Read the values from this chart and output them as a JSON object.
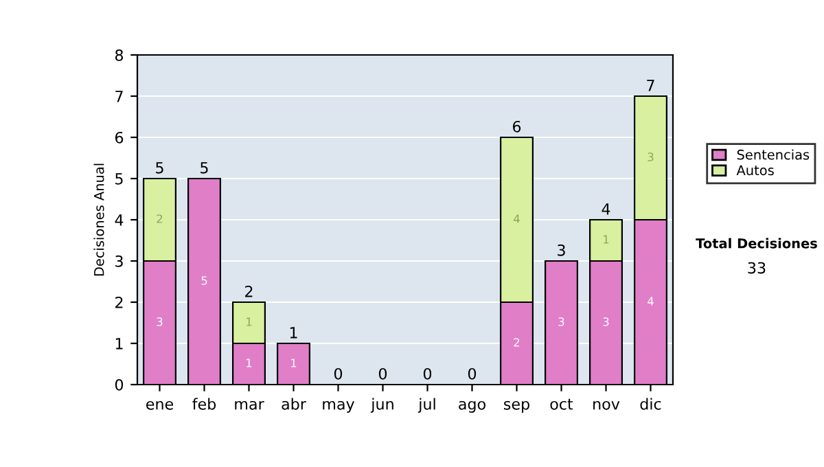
{
  "chart_data": {
    "type": "bar",
    "stacked": true,
    "ylabel": "Decisiones Anual",
    "categories": [
      "ene",
      "feb",
      "mar",
      "abr",
      "may",
      "jun",
      "jul",
      "ago",
      "sep",
      "oct",
      "nov",
      "dic"
    ],
    "series": [
      {
        "name": "Sentencias",
        "color": "#e07ec8",
        "values": [
          3,
          5,
          1,
          1,
          0,
          0,
          0,
          0,
          2,
          3,
          3,
          4
        ],
        "value_labels": [
          "3",
          "5",
          "1",
          "1",
          null,
          null,
          null,
          null,
          "2",
          "3",
          "3",
          "4"
        ]
      },
      {
        "name": "Autos",
        "color": "#d8f0a0",
        "values": [
          2,
          0,
          1,
          0,
          0,
          0,
          0,
          0,
          4,
          0,
          1,
          3
        ],
        "value_labels": [
          "2",
          null,
          "1",
          null,
          null,
          null,
          null,
          null,
          "4",
          null,
          "1",
          "3"
        ]
      }
    ],
    "totals": [
      "5",
      "5",
      "2",
      "1",
      "0",
      "0",
      "0",
      "0",
      "6",
      "3",
      "4",
      "7"
    ],
    "ylim": [
      0,
      8
    ],
    "yticks": [
      0,
      1,
      2,
      3,
      4,
      5,
      6,
      7,
      8
    ],
    "grid": "y",
    "legend": "right",
    "annotations": [
      "Total Decisiones",
      "33"
    ]
  }
}
